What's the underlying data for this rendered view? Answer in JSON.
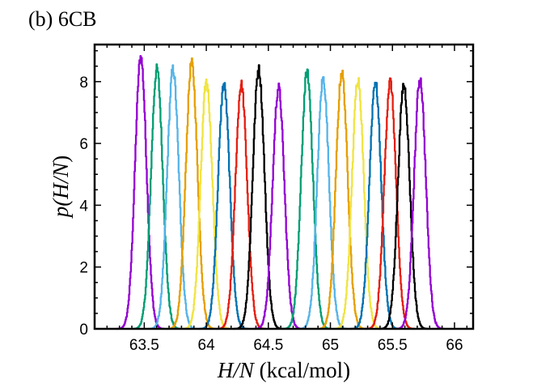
{
  "chart_data": {
    "type": "line",
    "title": "(b) 6CB",
    "xlabel_italic": "H/N",
    "xlabel_unit": " (kcal/mol)",
    "ylabel_prefix": "p(",
    "ylabel_italic": "H/N",
    "ylabel_suffix": ")",
    "xlim": [
      63.1,
      66.15
    ],
    "ylim": [
      0,
      9.2
    ],
    "xticks": [
      63.5,
      64,
      64.5,
      65,
      65.5,
      66
    ],
    "xtick_labels": [
      "63.5",
      "64",
      "64.5",
      "65",
      "65.5",
      "66"
    ],
    "yticks": [
      0,
      2,
      4,
      6,
      8
    ],
    "ytick_labels": [
      "0",
      "2",
      "4",
      "6",
      "8"
    ],
    "grid": false,
    "legend": "none",
    "series": [
      {
        "center": 63.47,
        "peak": 8.8,
        "sigma": 0.046,
        "color": "#9400D3"
      },
      {
        "center": 63.6,
        "peak": 8.4,
        "sigma": 0.047,
        "color": "#009E73"
      },
      {
        "center": 63.73,
        "peak": 8.4,
        "sigma": 0.047,
        "color": "#56B4E9"
      },
      {
        "center": 63.88,
        "peak": 8.6,
        "sigma": 0.047,
        "color": "#E69F00"
      },
      {
        "center": 64.0,
        "peak": 8.0,
        "sigma": 0.047,
        "color": "#F0E442"
      },
      {
        "center": 64.14,
        "peak": 7.9,
        "sigma": 0.047,
        "color": "#0072B2"
      },
      {
        "center": 64.28,
        "peak": 7.9,
        "sigma": 0.047,
        "color": "#E51E10"
      },
      {
        "center": 64.42,
        "peak": 8.4,
        "sigma": 0.047,
        "color": "#000000"
      },
      {
        "center": 64.58,
        "peak": 7.8,
        "sigma": 0.047,
        "color": "#9400D3"
      },
      {
        "center": 64.81,
        "peak": 8.3,
        "sigma": 0.047,
        "color": "#009E73"
      },
      {
        "center": 64.94,
        "peak": 8.1,
        "sigma": 0.047,
        "color": "#56B4E9"
      },
      {
        "center": 65.09,
        "peak": 8.3,
        "sigma": 0.047,
        "color": "#E69F00"
      },
      {
        "center": 65.22,
        "peak": 8.1,
        "sigma": 0.047,
        "color": "#F0E442"
      },
      {
        "center": 65.36,
        "peak": 8.0,
        "sigma": 0.047,
        "color": "#0072B2"
      },
      {
        "center": 65.48,
        "peak": 8.0,
        "sigma": 0.047,
        "color": "#E51E10"
      },
      {
        "center": 65.59,
        "peak": 7.9,
        "sigma": 0.047,
        "color": "#000000"
      },
      {
        "center": 65.72,
        "peak": 8.1,
        "sigma": 0.047,
        "color": "#9400D3"
      }
    ]
  }
}
